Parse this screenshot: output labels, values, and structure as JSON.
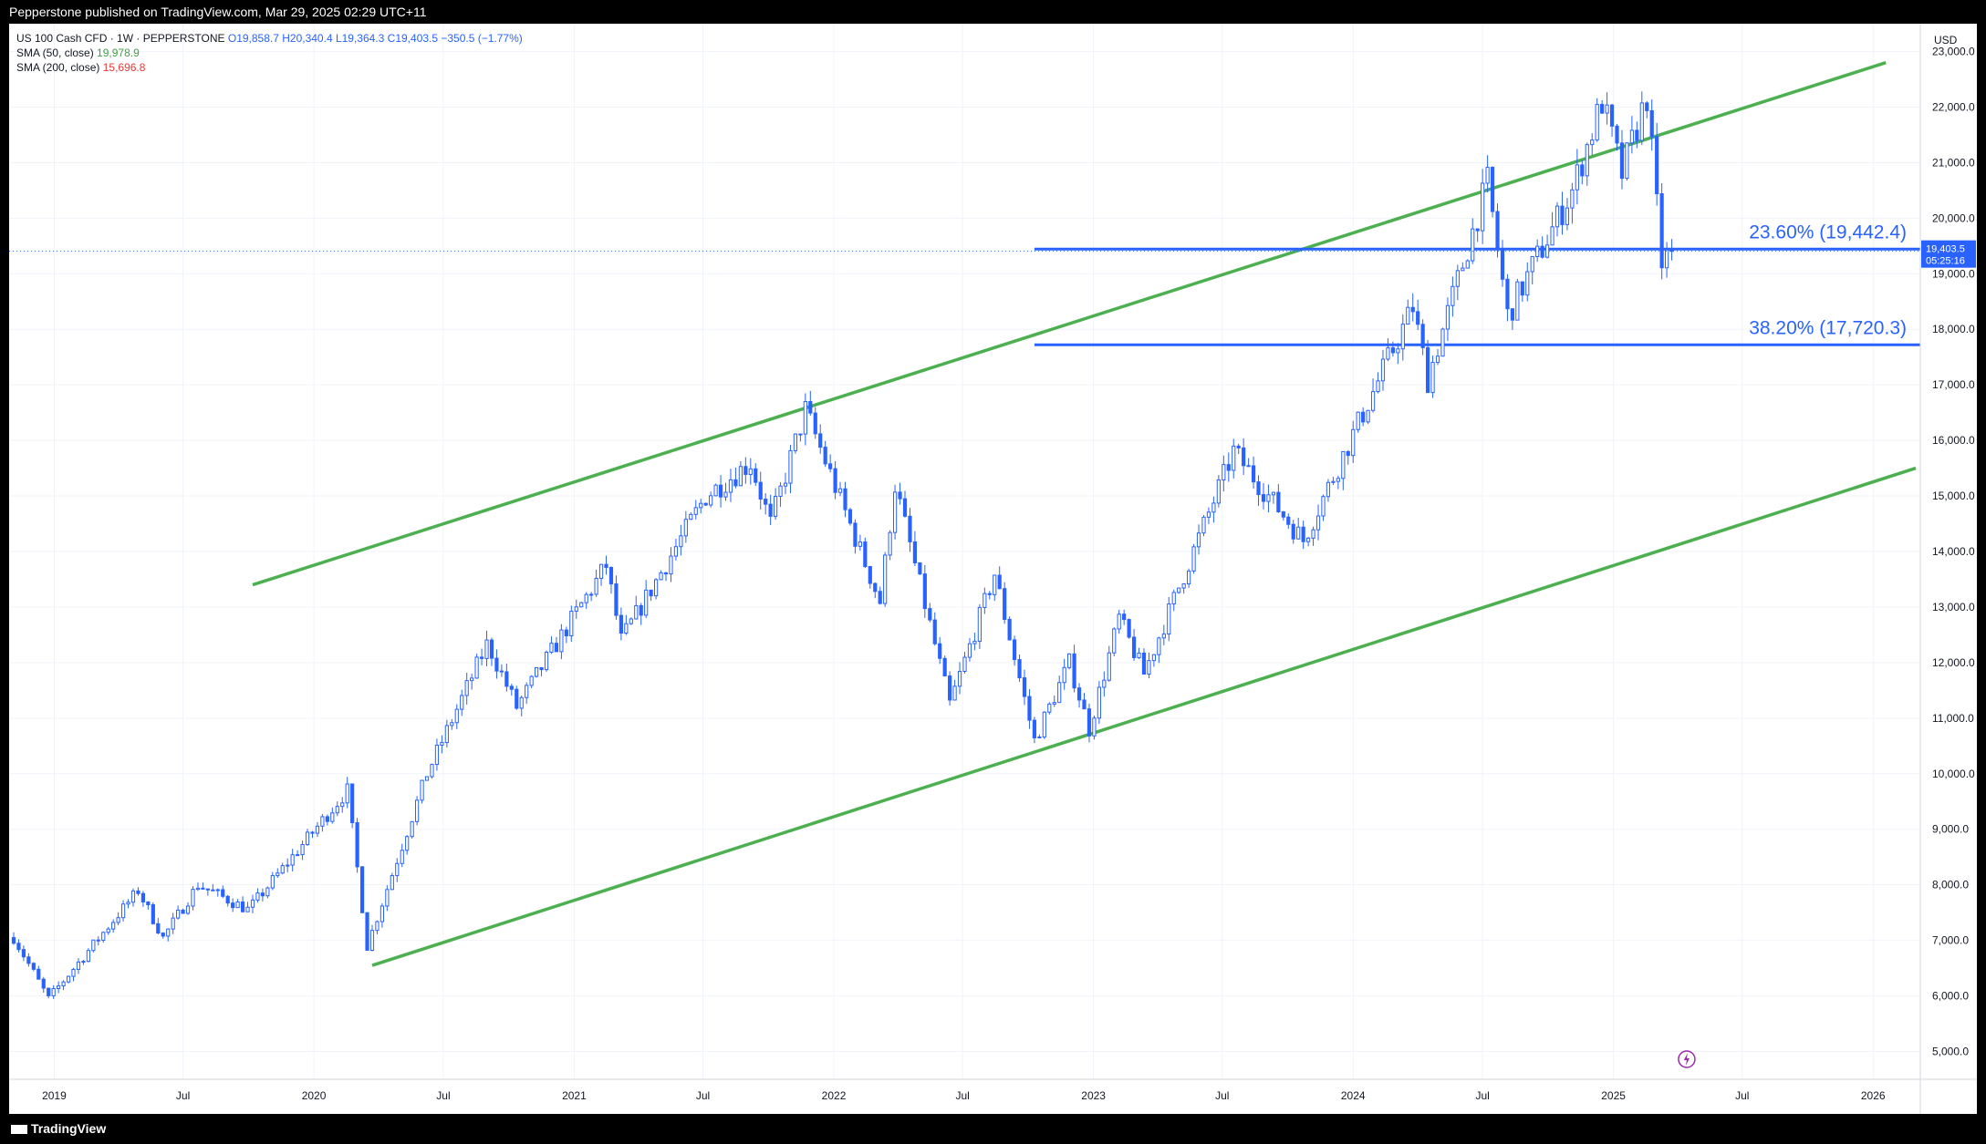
{
  "header": {
    "published_by": "Pepperstone published on TradingView.com, Mar 29, 2025 02:29 UTC+11"
  },
  "legend": {
    "symbol": "US 100 Cash CFD · 1W · PEPPERSTONE",
    "ohlc": "O19,858.7 H20,340.4 L19,364.3 C19,403.5 −350.5 (−1.77%)",
    "sma50": "SMA (50, close)",
    "sma50_value": "19,978.9",
    "sma200": "SMA (200, close)",
    "sma200_value": "15,696.8"
  },
  "currency": "USD",
  "footer": {
    "logo_text": "TradingView"
  },
  "colors": {
    "up": "#2962ff",
    "down": "#2962ff",
    "channel": "#4caf50",
    "fib": "#2962ff",
    "grid": "#f0f3fa"
  },
  "chart_data": {
    "type": "candlestick",
    "title": "US 100 Cash CFD · 1W · PEPPERSTONE",
    "ylim": [
      4500,
      23500
    ],
    "y_ticks": [
      5000,
      6000,
      7000,
      8000,
      9000,
      10000,
      11000,
      12000,
      13000,
      14000,
      15000,
      16000,
      17000,
      18000,
      19000,
      20000,
      21000,
      22000,
      23000
    ],
    "y_tick_labels": [
      "5,000.0",
      "6,000.0",
      "7,000.0",
      "8,000.0",
      "9,000.0",
      "10,000.0",
      "11,000.0",
      "12,000.0",
      "13,000.0",
      "14,000.0",
      "15,000.0",
      "16,000.0",
      "17,000.0",
      "18,000.0",
      "19,000.0",
      "20,000.0",
      "21,000.0",
      "22,000.0",
      "23,000.0"
    ],
    "x_range": [
      "2018-11-05",
      "2026-03-02"
    ],
    "x_ticks": [
      {
        "date": "2019-01-01",
        "label": "2019"
      },
      {
        "date": "2019-07-01",
        "label": "Jul"
      },
      {
        "date": "2020-01-01",
        "label": "2020"
      },
      {
        "date": "2020-07-01",
        "label": "Jul"
      },
      {
        "date": "2021-01-01",
        "label": "2021"
      },
      {
        "date": "2021-07-01",
        "label": "Jul"
      },
      {
        "date": "2022-01-01",
        "label": "2022"
      },
      {
        "date": "2022-07-01",
        "label": "Jul"
      },
      {
        "date": "2023-01-01",
        "label": "2023"
      },
      {
        "date": "2023-07-01",
        "label": "Jul"
      },
      {
        "date": "2024-01-01",
        "label": "2024"
      },
      {
        "date": "2024-07-01",
        "label": "Jul"
      },
      {
        "date": "2025-01-01",
        "label": "2025"
      },
      {
        "date": "2025-07-01",
        "label": "Jul"
      },
      {
        "date": "2026-01-01",
        "label": "2026"
      }
    ],
    "price_path": [
      [
        "2018-11-05",
        7050
      ],
      [
        "2018-12-24",
        5950
      ],
      [
        "2019-04-29",
        7900
      ],
      [
        "2019-06-03",
        7050
      ],
      [
        "2019-07-22",
        8000
      ],
      [
        "2019-10-01",
        7550
      ],
      [
        "2020-02-17",
        9700
      ],
      [
        "2020-03-16",
        6900
      ],
      [
        "2020-06-08",
        10000
      ],
      [
        "2020-09-01",
        12350
      ],
      [
        "2020-10-12",
        11200
      ],
      [
        "2021-02-15",
        13750
      ],
      [
        "2021-03-08",
        12400
      ],
      [
        "2021-07-05",
        15000
      ],
      [
        "2021-09-06",
        15600
      ],
      [
        "2021-10-04",
        14500
      ],
      [
        "2021-11-22",
        16550
      ],
      [
        "2022-03-07",
        13100
      ],
      [
        "2022-03-28",
        15200
      ],
      [
        "2022-06-13",
        11250
      ],
      [
        "2022-08-15",
        13600
      ],
      [
        "2022-10-10",
        10600
      ],
      [
        "2022-11-28",
        12000
      ],
      [
        "2022-12-26",
        10800
      ],
      [
        "2023-02-06",
        12800
      ],
      [
        "2023-03-13",
        11800
      ],
      [
        "2023-07-17",
        15800
      ],
      [
        "2023-10-23",
        14200
      ],
      [
        "2024-03-25",
        18400
      ],
      [
        "2024-04-15",
        17100
      ],
      [
        "2024-07-08",
        20650
      ],
      [
        "2024-08-05",
        18250
      ],
      [
        "2024-11-04",
        20500
      ],
      [
        "2024-12-16",
        22100
      ],
      [
        "2025-01-13",
        20800
      ],
      [
        "2025-02-17",
        22200
      ],
      [
        "2025-03-10",
        19200
      ],
      [
        "2025-03-24",
        19403.5
      ]
    ],
    "channel_upper": {
      "from": [
        "2019-10-07",
        13400
      ],
      "to": [
        "2026-01-19",
        22800
      ]
    },
    "channel_lower": {
      "from": [
        "2020-03-23",
        6550
      ],
      "to": [
        "2026-03-02",
        15500
      ]
    },
    "fib_levels": [
      {
        "label": "23.60% (19,442.4)",
        "value": 19442.4,
        "from": "2022-10-10"
      },
      {
        "label": "38.20% (17,720.3)",
        "value": 17720.3,
        "from": "2022-10-10"
      }
    ],
    "last_price": {
      "value": 19403.5,
      "label": "19,403.5",
      "countdown": "05:25:16"
    }
  }
}
